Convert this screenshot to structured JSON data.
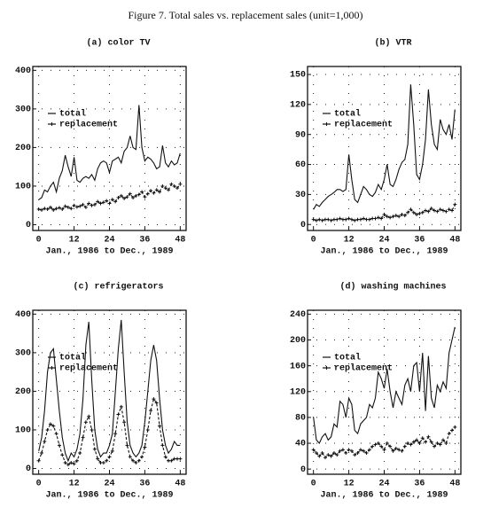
{
  "figure_title": "Figure 7. Total sales vs. replacement sales (unit=1,000)",
  "chart_data": [
    {
      "type": "line",
      "title": "(a) color TV",
      "x_label": "Jan., 1986 to Dec., 1989",
      "x": [
        0,
        1,
        2,
        3,
        4,
        5,
        6,
        7,
        8,
        9,
        10,
        11,
        12,
        13,
        14,
        15,
        16,
        17,
        18,
        19,
        20,
        21,
        22,
        23,
        24,
        25,
        26,
        27,
        28,
        29,
        30,
        31,
        32,
        33,
        34,
        35,
        36,
        37,
        38,
        39,
        40,
        41,
        42,
        43,
        44,
        45,
        46,
        47,
        48
      ],
      "xlim": [
        -2,
        50
      ],
      "xticks": [
        0,
        12,
        24,
        36,
        48
      ],
      "ylim": [
        -15,
        410
      ],
      "yticks": [
        0,
        100,
        200,
        300,
        400
      ],
      "grid": true,
      "legend": "upper-left",
      "series": [
        {
          "name": "total",
          "color": "#111111",
          "marker": "none",
          "values": [
            65,
            70,
            90,
            85,
            100,
            110,
            85,
            120,
            140,
            180,
            150,
            125,
            175,
            115,
            110,
            120,
            125,
            120,
            130,
            115,
            145,
            160,
            165,
            160,
            135,
            165,
            170,
            175,
            160,
            190,
            200,
            230,
            200,
            195,
            310,
            200,
            165,
            175,
            170,
            160,
            145,
            150,
            205,
            160,
            150,
            165,
            155,
            160,
            185
          ]
        },
        {
          "name": "replacement",
          "color": "#111111",
          "marker": "+",
          "values": [
            40,
            38,
            42,
            40,
            45,
            38,
            42,
            44,
            40,
            48,
            45,
            42,
            50,
            46,
            48,
            52,
            45,
            55,
            50,
            52,
            60,
            55,
            58,
            62,
            55,
            65,
            60,
            70,
            75,
            68,
            72,
            80,
            70,
            75,
            78,
            85,
            72,
            80,
            88,
            82,
            90,
            85,
            100,
            95,
            90,
            105,
            100,
            95,
            105
          ]
        }
      ]
    },
    {
      "type": "line",
      "title": "(b) VTR",
      "x_label": "Jan., 1986 to Dec., 1989",
      "x": [
        0,
        1,
        2,
        3,
        4,
        5,
        6,
        7,
        8,
        9,
        10,
        11,
        12,
        13,
        14,
        15,
        16,
        17,
        18,
        19,
        20,
        21,
        22,
        23,
        24,
        25,
        26,
        27,
        28,
        29,
        30,
        31,
        32,
        33,
        34,
        35,
        36,
        37,
        38,
        39,
        40,
        41,
        42,
        43,
        44,
        45,
        46,
        47,
        48
      ],
      "xlim": [
        -2,
        50
      ],
      "xticks": [
        0,
        12,
        24,
        36,
        48
      ],
      "ylim": [
        -6,
        158
      ],
      "yticks": [
        0,
        30,
        60,
        90,
        120,
        150
      ],
      "grid": true,
      "legend": "upper-left",
      "series": [
        {
          "name": "total",
          "color": "#111111",
          "marker": "none",
          "values": [
            15,
            20,
            18,
            22,
            25,
            28,
            30,
            32,
            35,
            35,
            33,
            35,
            70,
            45,
            25,
            22,
            30,
            38,
            35,
            30,
            28,
            32,
            40,
            35,
            45,
            60,
            40,
            38,
            45,
            55,
            62,
            65,
            80,
            140,
            100,
            50,
            45,
            60,
            85,
            135,
            100,
            80,
            75,
            105,
            95,
            90,
            100,
            85,
            115
          ]
        },
        {
          "name": "replacement",
          "color": "#111111",
          "marker": "+",
          "values": [
            5,
            4,
            5,
            4,
            5,
            5,
            4,
            5,
            5,
            6,
            5,
            5,
            6,
            5,
            4,
            5,
            5,
            6,
            5,
            5,
            6,
            6,
            7,
            6,
            10,
            8,
            7,
            8,
            9,
            8,
            10,
            9,
            12,
            15,
            12,
            10,
            11,
            12,
            14,
            13,
            16,
            14,
            13,
            15,
            14,
            13,
            15,
            14,
            20
          ]
        }
      ]
    },
    {
      "type": "line",
      "title": "(c) refrigerators",
      "x_label": "Jan., 1986 to Dec., 1989",
      "x": [
        0,
        1,
        2,
        3,
        4,
        5,
        6,
        7,
        8,
        9,
        10,
        11,
        12,
        13,
        14,
        15,
        16,
        17,
        18,
        19,
        20,
        21,
        22,
        23,
        24,
        25,
        26,
        27,
        28,
        29,
        30,
        31,
        32,
        33,
        34,
        35,
        36,
        37,
        38,
        39,
        40,
        41,
        42,
        43,
        44,
        45,
        46,
        47,
        48
      ],
      "xlim": [
        -2,
        50
      ],
      "xticks": [
        0,
        12,
        24,
        36,
        48
      ],
      "ylim": [
        -15,
        410
      ],
      "yticks": [
        0,
        100,
        200,
        300,
        400
      ],
      "grid": true,
      "legend": "upper-left",
      "series": [
        {
          "name": "total",
          "color": "#111111",
          "marker": "none",
          "values": [
            45,
            80,
            150,
            250,
            300,
            310,
            230,
            150,
            80,
            40,
            20,
            40,
            30,
            50,
            90,
            180,
            320,
            380,
            230,
            100,
            50,
            30,
            40,
            40,
            60,
            90,
            200,
            310,
            385,
            250,
            120,
            60,
            40,
            30,
            40,
            60,
            120,
            200,
            280,
            320,
            280,
            180,
            100,
            60,
            40,
            50,
            70,
            60,
            60
          ]
        },
        {
          "name": "replacement",
          "color": "#111111",
          "marker": "+",
          "values": [
            20,
            40,
            70,
            100,
            115,
            110,
            90,
            60,
            35,
            15,
            10,
            15,
            12,
            20,
            40,
            80,
            120,
            135,
            100,
            50,
            25,
            15,
            15,
            20,
            30,
            45,
            90,
            140,
            160,
            120,
            60,
            30,
            20,
            15,
            20,
            30,
            55,
            100,
            150,
            180,
            170,
            110,
            60,
            30,
            20,
            20,
            25,
            25,
            25
          ]
        }
      ]
    },
    {
      "type": "line",
      "title": "(d) washing machines",
      "x_label": "Jan., 1986 to Dec., 1989",
      "x": [
        0,
        1,
        2,
        3,
        4,
        5,
        6,
        7,
        8,
        9,
        10,
        11,
        12,
        13,
        14,
        15,
        16,
        17,
        18,
        19,
        20,
        21,
        22,
        23,
        24,
        25,
        26,
        27,
        28,
        29,
        30,
        31,
        32,
        33,
        34,
        35,
        36,
        37,
        38,
        39,
        40,
        41,
        42,
        43,
        44,
        45,
        46,
        47,
        48
      ],
      "xlim": [
        -2,
        50
      ],
      "xticks": [
        0,
        12,
        24,
        36,
        48
      ],
      "ylim": [
        -8,
        246
      ],
      "yticks": [
        0,
        40,
        80,
        120,
        160,
        200,
        240
      ],
      "grid": true,
      "legend": "upper-left",
      "series": [
        {
          "name": "total",
          "color": "#111111",
          "marker": "none",
          "values": [
            80,
            45,
            40,
            50,
            55,
            45,
            50,
            70,
            65,
            105,
            100,
            80,
            110,
            100,
            60,
            55,
            70,
            75,
            80,
            100,
            95,
            110,
            150,
            140,
            125,
            155,
            120,
            95,
            120,
            110,
            100,
            130,
            140,
            120,
            160,
            165,
            120,
            180,
            90,
            175,
            110,
            95,
            130,
            120,
            135,
            125,
            180,
            200,
            220
          ]
        },
        {
          "name": "replacement",
          "color": "#111111",
          "marker": "+",
          "values": [
            30,
            25,
            20,
            25,
            18,
            22,
            20,
            25,
            22,
            28,
            30,
            25,
            30,
            28,
            22,
            25,
            30,
            28,
            25,
            30,
            35,
            38,
            40,
            35,
            30,
            40,
            35,
            28,
            32,
            30,
            28,
            35,
            40,
            38,
            42,
            45,
            40,
            48,
            42,
            50,
            42,
            35,
            40,
            38,
            45,
            40,
            55,
            60,
            65
          ]
        }
      ]
    }
  ]
}
